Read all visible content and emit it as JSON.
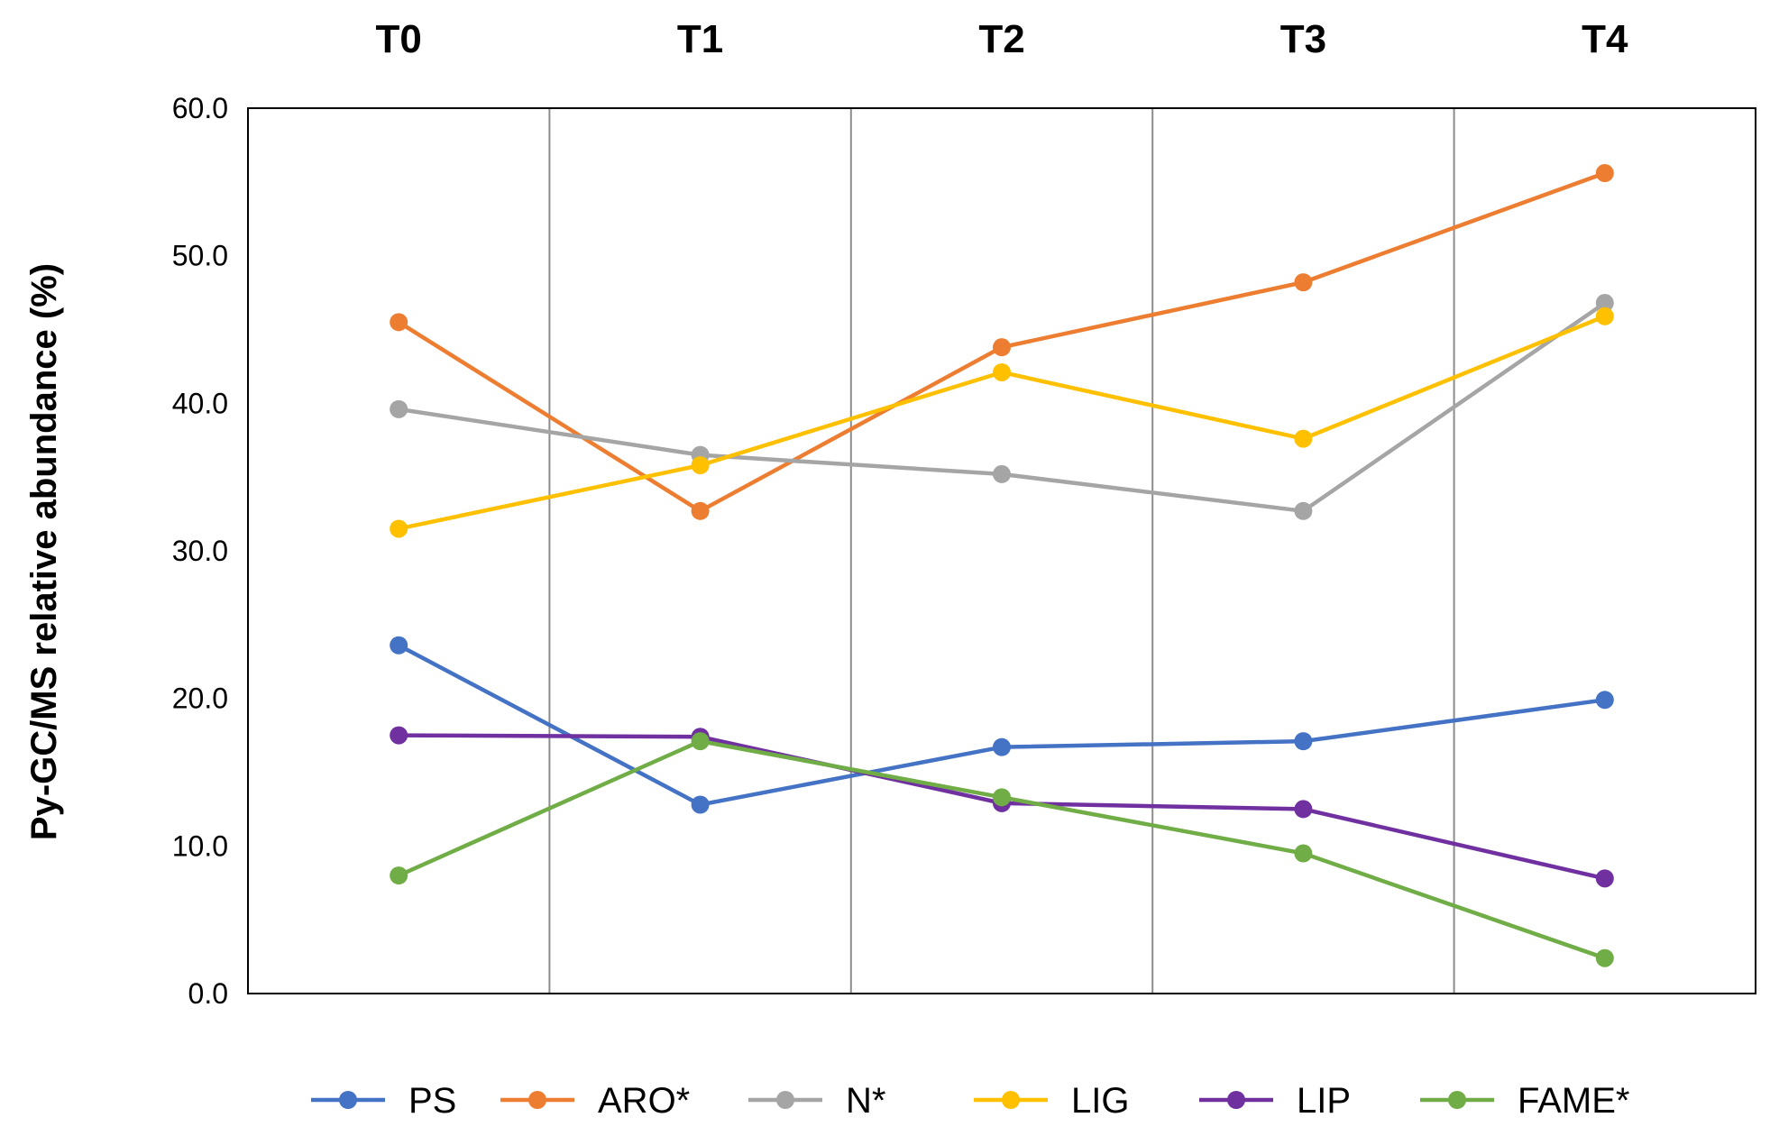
{
  "chart_data": {
    "type": "line",
    "title": "",
    "xlabel": "",
    "ylabel": "Py-GC/MS relative abundance (%)",
    "categories": [
      "T0",
      "T1",
      "T2",
      "T3",
      "T4"
    ],
    "ylim": [
      0,
      60
    ],
    "yticks": [
      "0.0",
      "10.0",
      "20.0",
      "30.0",
      "40.0",
      "50.0",
      "60.0"
    ],
    "legend_position": "bottom",
    "series": [
      {
        "name": "PS",
        "color": "#4472C4",
        "values": [
          23.6,
          12.8,
          16.7,
          17.1,
          19.9
        ]
      },
      {
        "name": "ARO*",
        "color": "#ED7D31",
        "values": [
          45.5,
          32.7,
          43.8,
          48.2,
          55.6
        ]
      },
      {
        "name": "N*",
        "color": "#A5A5A5",
        "values": [
          39.6,
          36.5,
          35.2,
          32.7,
          46.8
        ]
      },
      {
        "name": "LIG",
        "color": "#FFC000",
        "values": [
          31.5,
          35.8,
          42.1,
          37.6,
          45.9
        ]
      },
      {
        "name": "LIP",
        "color": "#7030A0",
        "values": [
          17.5,
          17.4,
          12.9,
          12.5,
          7.8
        ]
      },
      {
        "name": "FAME*",
        "color": "#70AD47",
        "values": [
          8.0,
          17.1,
          13.3,
          9.5,
          2.4
        ]
      }
    ]
  }
}
